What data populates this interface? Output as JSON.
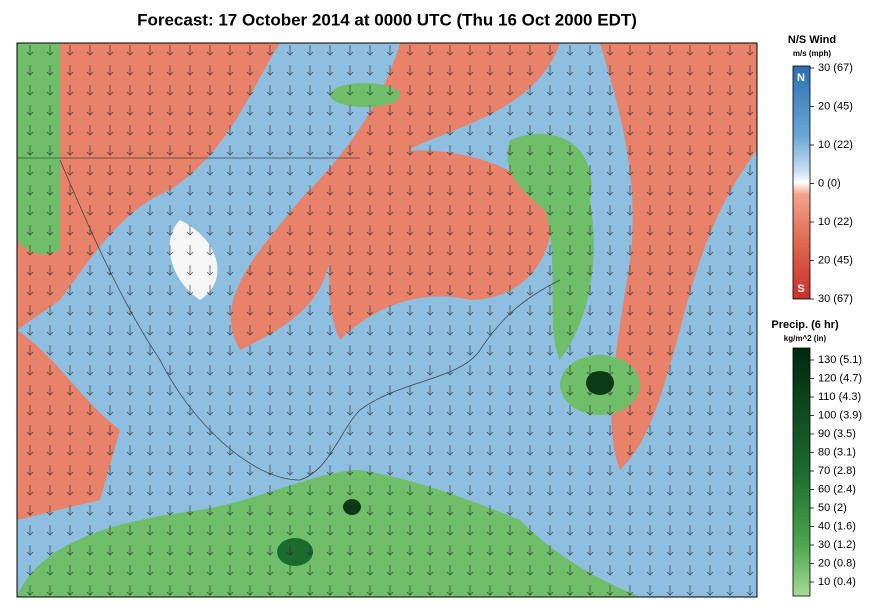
{
  "title": "Forecast: 17 October 2014 at 0000 UTC (Thu 16 Oct 2000 EDT)",
  "wind_legend": {
    "title": "N/S Wind",
    "units": "m/s (mph)",
    "north_label": "N",
    "south_label": "S",
    "ticks": [
      "30 (67)",
      "20 (45)",
      "10 (22)",
      "0 (0)",
      "10 (22)",
      "20 (45)",
      "30 (67)"
    ]
  },
  "precip_legend": {
    "title": "Precip. (6 hr)",
    "units": "kg/m^2 (in)",
    "ticks": [
      "130 (5.1)",
      "120 (4.7)",
      "110 (4.3)",
      "100 (3.9)",
      "90 (3.5)",
      "80 (3.1)",
      "70 (2.8)",
      "60 (2.4)",
      "50 (2)",
      "40 (1.6)",
      "30 (1.2)",
      "20 (0.8)",
      "10 (0.4)"
    ]
  }
}
